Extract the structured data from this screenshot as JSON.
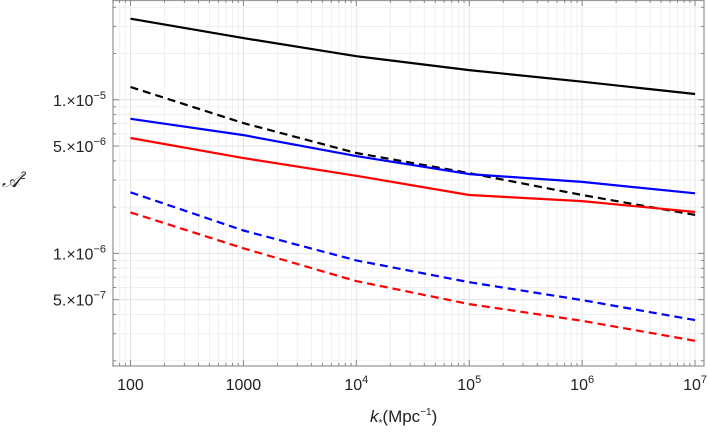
{
  "chart_data": {
    "type": "line",
    "title": "",
    "xlabel": "k_*(Mpc^-1)",
    "xlabel_main": "k",
    "xlabel_sub": "*",
    "xlabel_unit": "(Mpc",
    "xlabel_exp": "−1",
    "xlabel_close": ")",
    "ylabel": "𝒜",
    "ylabel_exp": "2",
    "x_scale": "log",
    "y_scale": "log",
    "xlim": [
      70,
      12000000
    ],
    "ylim": [
      1.85e-07,
      4.46e-05
    ],
    "grid": true,
    "x_ticks": [
      {
        "value": 100,
        "label": "100",
        "base": "",
        "exp": ""
      },
      {
        "value": 1000,
        "label": "1000",
        "base": "",
        "exp": ""
      },
      {
        "value": 10000,
        "label": "",
        "base": "10",
        "exp": "4"
      },
      {
        "value": 100000,
        "label": "",
        "base": "10",
        "exp": "5"
      },
      {
        "value": 1000000,
        "label": "",
        "base": "10",
        "exp": "6"
      },
      {
        "value": 10000000,
        "label": "",
        "base": "10",
        "exp": "7"
      }
    ],
    "y_ticks": [
      {
        "value": 1e-05,
        "mant": "1.",
        "times": "×",
        "base": "10",
        "exp": "−5"
      },
      {
        "value": 5e-06,
        "mant": "5.",
        "times": "×",
        "base": "10",
        "exp": "−6"
      },
      {
        "value": 1e-06,
        "mant": "1.",
        "times": "×",
        "base": "10",
        "exp": "−6"
      },
      {
        "value": 5e-07,
        "mant": "5.",
        "times": "×",
        "base": "10",
        "exp": "−7"
      }
    ],
    "x": [
      100,
      1000,
      10000,
      100000,
      1000000,
      10000000
    ],
    "series": [
      {
        "color": "#000000",
        "dash": false,
        "values": [
          3.37e-05,
          2.52e-05,
          1.92e-05,
          1.56e-05,
          1.31e-05,
          1.09e-05
        ]
      },
      {
        "color": "#000000",
        "dash": true,
        "values": [
          1.21e-05,
          7.05e-06,
          4.5e-06,
          3.33e-06,
          2.4e-06,
          1.78e-06
        ]
      },
      {
        "color": "#0000ff",
        "dash": false,
        "values": [
          7.52e-06,
          5.89e-06,
          4.3e-06,
          3.28e-06,
          2.92e-06,
          2.46e-06
        ]
      },
      {
        "color": "#ff0000",
        "dash": false,
        "values": [
          5.64e-06,
          4.17e-06,
          3.2e-06,
          2.4e-06,
          2.19e-06,
          1.86e-06
        ]
      },
      {
        "color": "#0000ff",
        "dash": true,
        "values": [
          2.5e-06,
          1.41e-06,
          9e-07,
          6.5e-07,
          4.97e-07,
          3.68e-07
        ]
      },
      {
        "color": "#ff0000",
        "dash": true,
        "values": [
          1.85e-06,
          1.08e-06,
          6.6e-07,
          4.68e-07,
          3.64e-07,
          2.7e-07
        ]
      }
    ]
  }
}
